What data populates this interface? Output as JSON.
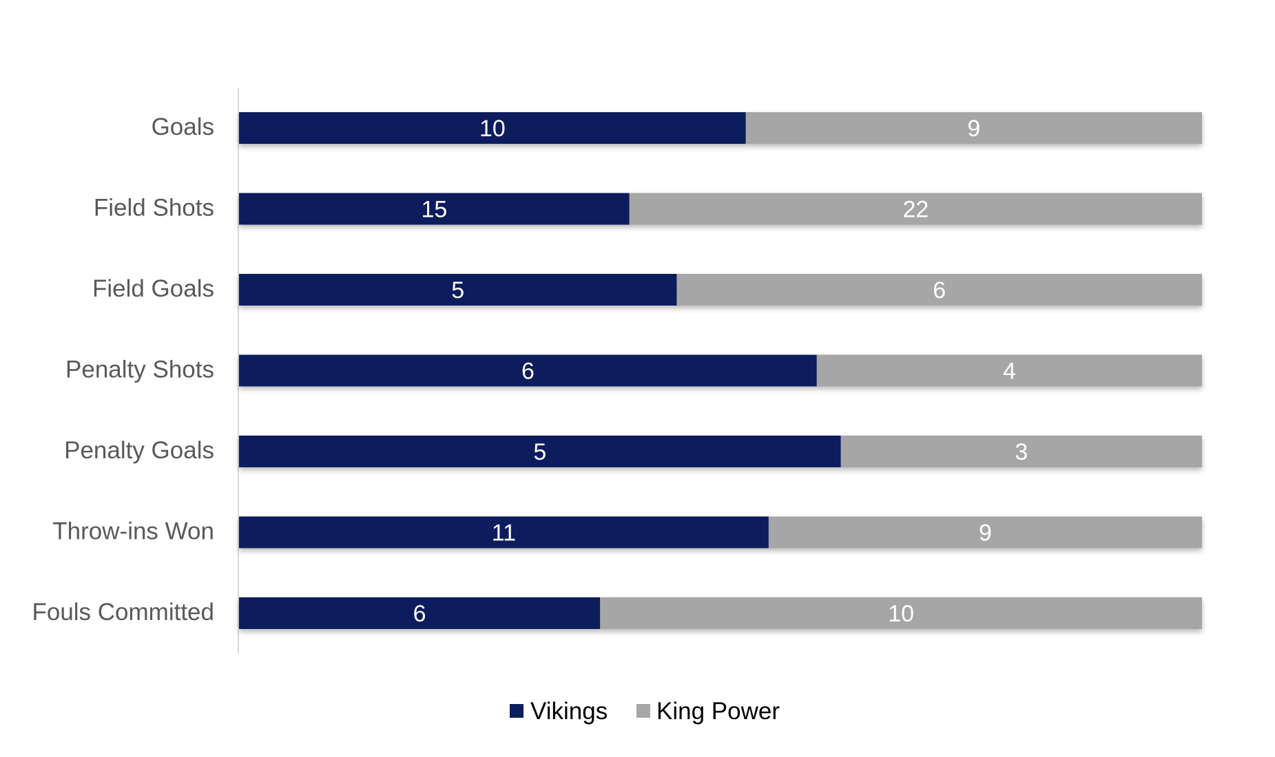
{
  "chart_data": {
    "type": "bar",
    "orientation": "horizontal",
    "stacking": "percent",
    "title": "",
    "xlabel": "",
    "ylabel": "",
    "grid": false,
    "legend_position": "bottom",
    "categories": [
      "Goals",
      "Field Shots",
      "Field Goals",
      "Penalty Shots",
      "Penalty Goals",
      "Throw-ins Won",
      "Fouls Committed"
    ],
    "series": [
      {
        "name": "Vikings",
        "color": "#0b1f5c",
        "values": [
          10,
          15,
          5,
          6,
          5,
          11,
          6
        ]
      },
      {
        "name": "King Power",
        "color": "#a6a6a6",
        "values": [
          9,
          22,
          6,
          4,
          3,
          9,
          10
        ]
      }
    ],
    "colors": {
      "category_label": "#595959",
      "axis_line": "#d9d9d9",
      "data_label": "#ffffff",
      "legend_text": "#000000"
    }
  }
}
